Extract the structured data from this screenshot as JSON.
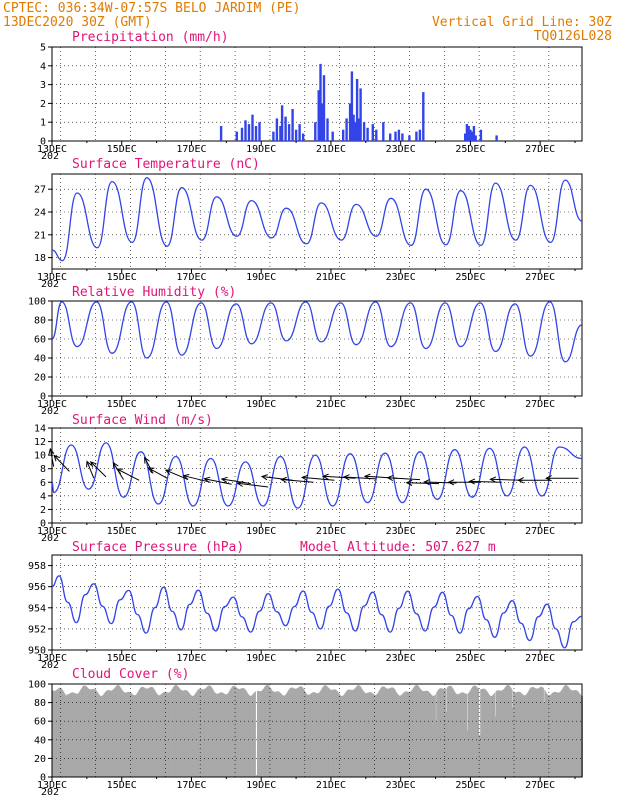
{
  "header": {
    "line1": "CPTEC:  036:34W-07:57S  BELO JARDIM (PE)",
    "line2": "13DEC2020 30Z (GMT)",
    "grid_note": "Vertical Grid Line: 30Z",
    "code": "TQ0126L028"
  },
  "x_labels": [
    "13DEC",
    "15DEC",
    "17DEC",
    "19DEC",
    "21DEC",
    "23DEC",
    "25DEC",
    "27DEC"
  ],
  "year_fragment": "202",
  "colors": {
    "series": "#3344e8",
    "title": "#e0157a",
    "header": "#e07b00",
    "cloud": "#a8a8a8",
    "arrow": "#000000"
  },
  "chart_data": [
    {
      "id": "precip",
      "type": "bar",
      "title": "Precipitation (mm/h)",
      "ylim": [
        0,
        5
      ],
      "yticks": [
        "0",
        "1",
        "2",
        "3",
        "4",
        "5"
      ],
      "x_range_days": [
        13.0,
        28.2
      ],
      "events": [
        {
          "x": 17.85,
          "v": 0.8
        },
        {
          "x": 18.3,
          "v": 0.5
        },
        {
          "x": 18.45,
          "v": 0.7
        },
        {
          "x": 18.55,
          "v": 1.1
        },
        {
          "x": 18.65,
          "v": 0.9
        },
        {
          "x": 18.75,
          "v": 1.4
        },
        {
          "x": 18.85,
          "v": 0.8
        },
        {
          "x": 18.95,
          "v": 1.0
        },
        {
          "x": 19.35,
          "v": 0.5
        },
        {
          "x": 19.45,
          "v": 1.2
        },
        {
          "x": 19.55,
          "v": 0.8
        },
        {
          "x": 19.6,
          "v": 1.9
        },
        {
          "x": 19.7,
          "v": 1.3
        },
        {
          "x": 19.8,
          "v": 0.9
        },
        {
          "x": 19.9,
          "v": 1.7
        },
        {
          "x": 20.0,
          "v": 0.6
        },
        {
          "x": 20.1,
          "v": 0.9
        },
        {
          "x": 20.2,
          "v": 0.4
        },
        {
          "x": 20.55,
          "v": 1.0
        },
        {
          "x": 20.65,
          "v": 2.7
        },
        {
          "x": 20.7,
          "v": 4.1
        },
        {
          "x": 20.75,
          "v": 2.0
        },
        {
          "x": 20.8,
          "v": 3.5
        },
        {
          "x": 20.9,
          "v": 1.2
        },
        {
          "x": 21.05,
          "v": 0.5
        },
        {
          "x": 21.35,
          "v": 0.6
        },
        {
          "x": 21.45,
          "v": 1.2
        },
        {
          "x": 21.55,
          "v": 2.0
        },
        {
          "x": 21.6,
          "v": 3.7
        },
        {
          "x": 21.65,
          "v": 1.4
        },
        {
          "x": 21.7,
          "v": 1.0
        },
        {
          "x": 21.75,
          "v": 3.3
        },
        {
          "x": 21.8,
          "v": 1.2
        },
        {
          "x": 21.85,
          "v": 2.8
        },
        {
          "x": 21.95,
          "v": 1.0
        },
        {
          "x": 22.05,
          "v": 0.7
        },
        {
          "x": 22.2,
          "v": 0.9
        },
        {
          "x": 22.3,
          "v": 0.6
        },
        {
          "x": 22.5,
          "v": 1.0
        },
        {
          "x": 22.7,
          "v": 0.4
        },
        {
          "x": 22.85,
          "v": 0.5
        },
        {
          "x": 22.95,
          "v": 0.6
        },
        {
          "x": 23.05,
          "v": 0.4
        },
        {
          "x": 23.25,
          "v": 0.3
        },
        {
          "x": 23.45,
          "v": 0.5
        },
        {
          "x": 23.55,
          "v": 0.6
        },
        {
          "x": 23.65,
          "v": 2.6
        },
        {
          "x": 24.85,
          "v": 0.4
        },
        {
          "x": 24.9,
          "v": 0.9
        },
        {
          "x": 24.95,
          "v": 0.8
        },
        {
          "x": 25.0,
          "v": 0.6
        },
        {
          "x": 25.05,
          "v": 0.5
        },
        {
          "x": 25.1,
          "v": 0.8
        },
        {
          "x": 25.15,
          "v": 0.3
        },
        {
          "x": 25.3,
          "v": 0.6
        },
        {
          "x": 25.75,
          "v": 0.3
        }
      ]
    },
    {
      "id": "temp",
      "type": "line",
      "title": "Surface Temperature (nC)",
      "ylim": [
        16.5,
        29.0
      ],
      "yticks": [
        "18",
        "21",
        "24",
        "27"
      ],
      "ytick_values": [
        18,
        21,
        24,
        27
      ],
      "x_range_days": [
        13.0,
        28.2
      ],
      "day_max": [
        26.5,
        28.0,
        28.5,
        27.2,
        26.0,
        25.5,
        24.5,
        25.2,
        25.0,
        25.8,
        27.0,
        26.8,
        27.8,
        27.5,
        28.2
      ],
      "day_min": [
        17.6,
        19.3,
        20.0,
        19.5,
        20.3,
        20.8,
        20.6,
        19.8,
        20.3,
        20.8,
        19.6,
        19.7,
        19.6,
        20.3,
        20.0
      ],
      "start": 19.0,
      "end": 22.8
    },
    {
      "id": "rh",
      "type": "line",
      "title": "Relative Humidity (%)",
      "ylim": [
        0,
        100
      ],
      "yticks": [
        "0",
        "20",
        "40",
        "60",
        "80",
        "100"
      ],
      "ytick_values": [
        0,
        20,
        40,
        60,
        80,
        100
      ],
      "x_range_days": [
        13.0,
        28.2
      ],
      "day_max": [
        99,
        99,
        99,
        99,
        98,
        97,
        98,
        99,
        98,
        99,
        98,
        98,
        98,
        97,
        99
      ],
      "day_min": [
        52,
        45,
        40,
        43,
        50,
        55,
        58,
        57,
        54,
        52,
        50,
        52,
        47,
        42,
        36
      ],
      "start": 60,
      "end": 75
    },
    {
      "id": "wind",
      "type": "line",
      "title": "Surface Wind (m/s)",
      "ylim": [
        0,
        14
      ],
      "yticks": [
        "0",
        "2",
        "4",
        "6",
        "8",
        "10",
        "12",
        "14"
      ],
      "ytick_values": [
        0,
        2,
        4,
        6,
        8,
        10,
        12,
        14
      ],
      "x_range_days": [
        13.0,
        28.2
      ],
      "day_max": [
        11.5,
        11.8,
        10.5,
        9.8,
        9.5,
        9.0,
        9.8,
        10.0,
        10.2,
        10.3,
        10.5,
        10.8,
        11.0,
        11.2,
        11.2
      ],
      "day_min": [
        4.5,
        5.0,
        3.8,
        2.8,
        2.5,
        2.5,
        2.5,
        2.2,
        2.5,
        3.0,
        3.0,
        3.5,
        3.8,
        4.0,
        4.0
      ],
      "start": 6.0,
      "end": 9.5,
      "arrows": [
        {
          "x": 13.05,
          "y": 8.3,
          "dx": -0.1,
          "dy": 0.95
        },
        {
          "x": 13.5,
          "y": 7.6,
          "dx": -0.45,
          "dy": 0.85
        },
        {
          "x": 14.2,
          "y": 6.6,
          "dx": -0.2,
          "dy": 0.9
        },
        {
          "x": 14.55,
          "y": 6.8,
          "dx": -0.45,
          "dy": 0.8
        },
        {
          "x": 15.05,
          "y": 6.4,
          "dx": -0.3,
          "dy": 0.9
        },
        {
          "x": 15.5,
          "y": 6.3,
          "dx": -0.65,
          "dy": 0.6
        },
        {
          "x": 15.9,
          "y": 7.3,
          "dx": -0.25,
          "dy": 0.85
        },
        {
          "x": 16.3,
          "y": 6.6,
          "dx": -0.55,
          "dy": 0.55
        },
        {
          "x": 16.9,
          "y": 6.4,
          "dx": -0.65,
          "dy": 0.5
        },
        {
          "x": 17.55,
          "y": 6.0,
          "dx": -0.8,
          "dy": 0.35
        },
        {
          "x": 18.15,
          "y": 5.7,
          "dx": -0.8,
          "dy": 0.3
        },
        {
          "x": 18.7,
          "y": 5.8,
          "dx": -0.85,
          "dy": 0.25
        },
        {
          "x": 19.2,
          "y": 5.3,
          "dx": -0.9,
          "dy": 0.2
        },
        {
          "x": 19.9,
          "y": 6.3,
          "dx": -0.9,
          "dy": 0.2
        },
        {
          "x": 20.5,
          "y": 6.0,
          "dx": -0.95,
          "dy": 0.15
        },
        {
          "x": 21.1,
          "y": 6.3,
          "dx": -0.95,
          "dy": 0.15
        },
        {
          "x": 21.7,
          "y": 6.6,
          "dx": -0.95,
          "dy": 0.1
        },
        {
          "x": 22.3,
          "y": 6.5,
          "dx": -0.95,
          "dy": 0.1
        },
        {
          "x": 22.9,
          "y": 6.6,
          "dx": -0.95,
          "dy": 0.1
        },
        {
          "x": 23.55,
          "y": 6.4,
          "dx": -0.95,
          "dy": 0.1
        },
        {
          "x": 24.1,
          "y": 5.8,
          "dx": -0.95,
          "dy": 0.05
        },
        {
          "x": 24.6,
          "y": 5.9,
          "dx": -0.95,
          "dy": 0.05
        },
        {
          "x": 25.3,
          "y": 6.0,
          "dx": -0.95,
          "dy": 0.0
        },
        {
          "x": 25.9,
          "y": 6.0,
          "dx": -0.95,
          "dy": 0.05
        },
        {
          "x": 26.5,
          "y": 6.3,
          "dx": -0.95,
          "dy": 0.05
        },
        {
          "x": 27.3,
          "y": 6.3,
          "dx": -0.95,
          "dy": 0.0
        },
        {
          "x": 28.1,
          "y": 6.6,
          "dx": -0.95,
          "dy": 0.0
        }
      ]
    },
    {
      "id": "pres",
      "type": "line",
      "title": "Surface Pressure (hPa)",
      "subtitle": "Model Altitude: 507.627 m",
      "ylim": [
        950,
        959
      ],
      "yticks": [
        "950",
        "952",
        "954",
        "956",
        "958"
      ],
      "ytick_values": [
        950,
        952,
        954,
        956,
        958
      ],
      "x_range_days": [
        13.0,
        28.2
      ],
      "day_max": [
        957.4,
        956.6,
        956.0,
        956.3,
        956.0,
        955.3,
        955.6,
        955.9,
        956.1,
        955.8,
        955.9,
        955.8,
        955.4,
        955.0,
        954.7
      ],
      "day_min": [
        952.6,
        952.5,
        951.6,
        951.9,
        951.8,
        951.7,
        952.3,
        952.0,
        951.8,
        951.7,
        951.8,
        951.6,
        951.2,
        950.9,
        950.2
      ],
      "start": 956.0,
      "end": 953.2
    },
    {
      "id": "cloud",
      "type": "bar",
      "title": "Cloud Cover (%)",
      "ylim": [
        0,
        100
      ],
      "yticks": [
        "0",
        "20",
        "40",
        "60",
        "80",
        "100"
      ],
      "ytick_values": [
        0,
        20,
        40,
        60,
        80,
        100
      ],
      "x_range_days": [
        13.0,
        28.2
      ],
      "base_level": 93,
      "drops": [
        {
          "x": 18.85,
          "v": 2
        },
        {
          "x": 24.0,
          "v": 60
        },
        {
          "x": 24.3,
          "v": 70
        },
        {
          "x": 24.9,
          "v": 50
        },
        {
          "x": 25.25,
          "v": 45
        },
        {
          "x": 25.7,
          "v": 65
        },
        {
          "x": 26.2,
          "v": 75
        },
        {
          "x": 27.1,
          "v": 80
        }
      ]
    }
  ]
}
